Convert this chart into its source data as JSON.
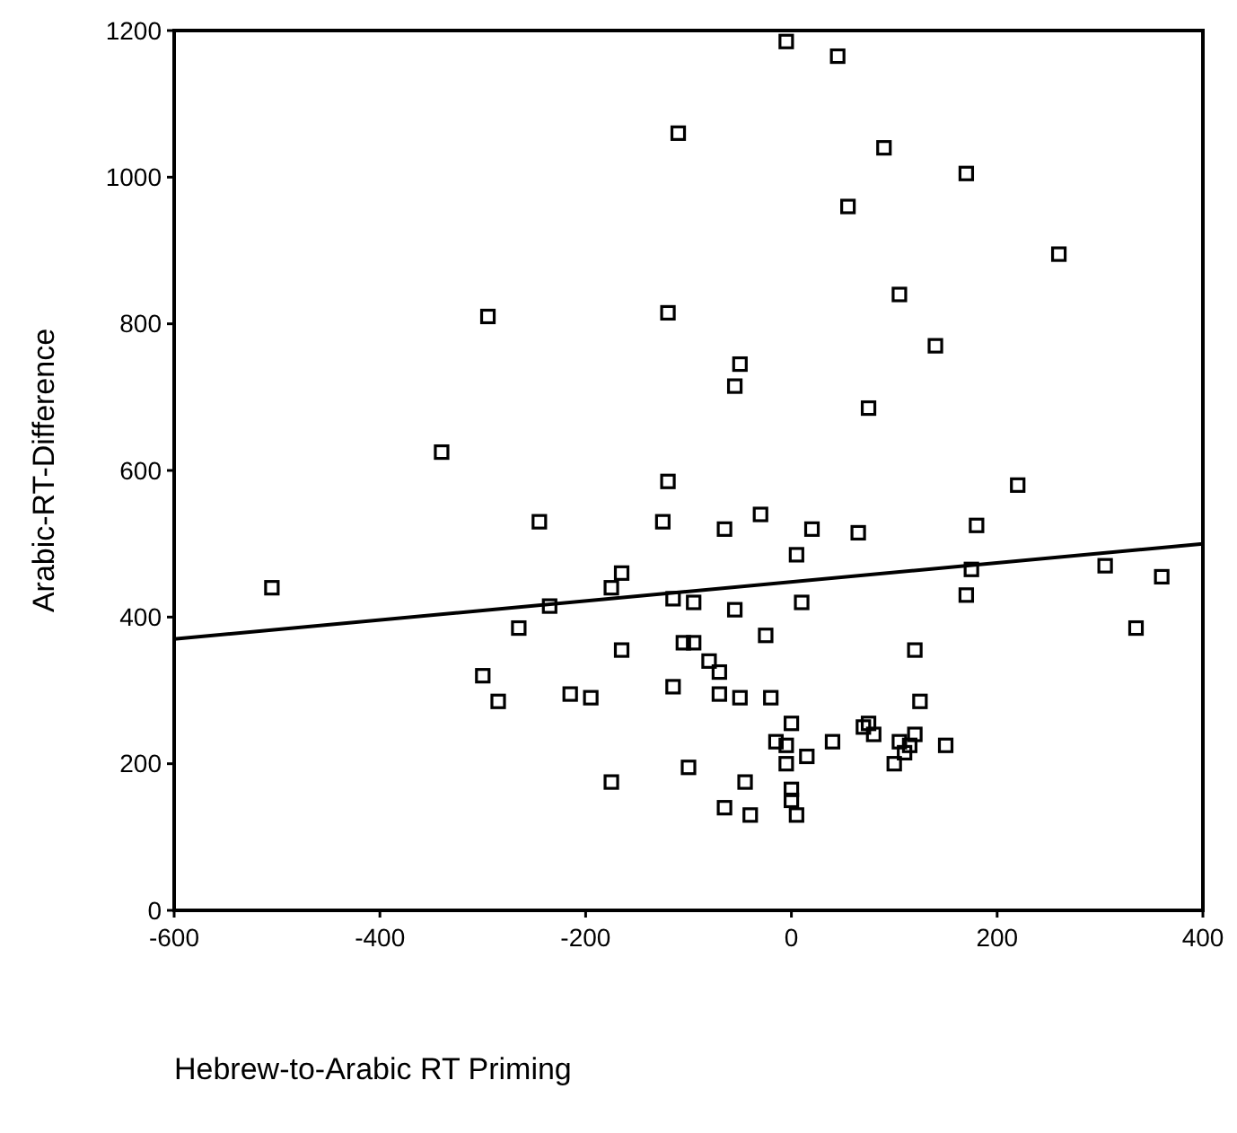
{
  "chart_data": {
    "type": "scatter",
    "xlabel": "Hebrew-to-Arabic RT Priming",
    "ylabel": "Arabic-RT-Difference",
    "xlim": [
      -600,
      400
    ],
    "xticks": [
      -600,
      -400,
      -200,
      0,
      200,
      400
    ],
    "ylim": [
      0,
      1200
    ],
    "yticks": [
      0,
      200,
      400,
      600,
      800,
      1000,
      1200
    ],
    "grid": false,
    "marker": "square",
    "series": [
      {
        "color": "#000000",
        "x": [
          -505,
          -340,
          -295,
          -300,
          -285,
          -245,
          -265,
          -235,
          -215,
          -195,
          -175,
          -175,
          -165,
          -165,
          -125,
          -120,
          -120,
          -110,
          -115,
          -115,
          -105,
          -95,
          -95,
          -100,
          -80,
          -70,
          -65,
          -65,
          -70,
          -55,
          -50,
          -55,
          -50,
          -45,
          -40,
          -30,
          -25,
          -20,
          -15,
          -5,
          -5,
          0,
          -5,
          0,
          0,
          5,
          5,
          10,
          20,
          15,
          40,
          45,
          55,
          65,
          70,
          75,
          75,
          80,
          90,
          100,
          105,
          105,
          110,
          115,
          120,
          120,
          125,
          140,
          150,
          170,
          170,
          175,
          180,
          220,
          260,
          305,
          335,
          360
        ],
        "values": [
          440,
          625,
          810,
          320,
          285,
          530,
          385,
          415,
          295,
          290,
          440,
          175,
          460,
          355,
          530,
          585,
          815,
          1060,
          425,
          305,
          365,
          365,
          420,
          195,
          340,
          295,
          520,
          140,
          325,
          715,
          745,
          410,
          290,
          175,
          130,
          540,
          375,
          290,
          230,
          1185,
          225,
          255,
          200,
          150,
          165,
          485,
          130,
          420,
          520,
          210,
          230,
          1165,
          960,
          515,
          250,
          255,
          685,
          240,
          1040,
          200,
          840,
          230,
          215,
          225,
          240,
          355,
          285,
          770,
          225,
          1005,
          430,
          465,
          525,
          580,
          895,
          470,
          385,
          455
        ]
      },
      {
        "type": "line",
        "color": "#000000",
        "x": [
          -600,
          400
        ],
        "values": [
          370,
          500
        ],
        "marker": "none",
        "line_style": "solid"
      }
    ]
  }
}
